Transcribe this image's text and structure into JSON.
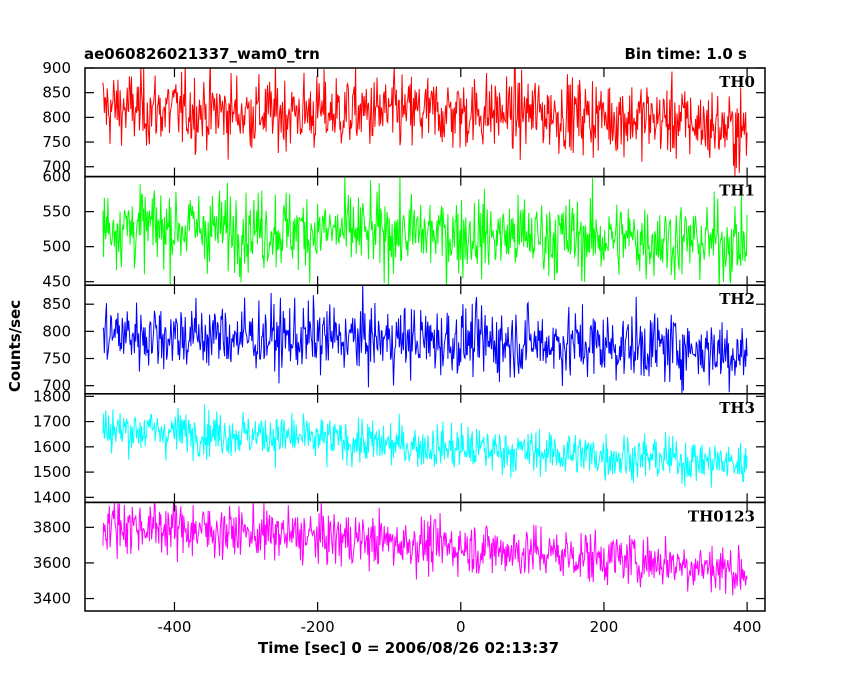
{
  "header": {
    "title": "ae060826021337_wam0_trn",
    "bin_time": "Bin time: 1.0 s"
  },
  "axes": {
    "xlabel": "Time [sec] 0 = 2006/08/26 02:13:37",
    "ylabel": "Counts/sec"
  },
  "chart_data": {
    "type": "line",
    "title": "ae060826021337_wam0_trn",
    "subtitle": "Bin time: 1.0 s",
    "xlabel": "Time [sec] 0 = 2006/08/26 02:13:37",
    "ylabel": "Counts/sec",
    "xlim": [
      -525,
      425
    ],
    "x_range": [
      -500,
      400
    ],
    "x_ticks": [
      -400,
      -200,
      0,
      200,
      400
    ],
    "bin_seconds": 1.0,
    "grid": false,
    "legend": "none",
    "panels": [
      {
        "name": "TH0",
        "color": "#ff0000",
        "ylim": [
          680,
          900
        ],
        "y_ticks": [
          700,
          750,
          800,
          850,
          900
        ],
        "trend_x": [
          -500,
          -300,
          -100,
          100,
          300,
          400
        ],
        "trend_y": [
          820,
          810,
          810,
          810,
          795,
          770
        ],
        "noise_sd": 38
      },
      {
        "name": "TH1",
        "color": "#00ff00",
        "ylim": [
          445,
          600
        ],
        "y_ticks": [
          450,
          500,
          550,
          600
        ],
        "trend_x": [
          -500,
          -300,
          -100,
          100,
          300,
          400
        ],
        "trend_y": [
          530,
          525,
          520,
          515,
          510,
          505
        ],
        "noise_sd": 28
      },
      {
        "name": "TH2",
        "color": "#0000ff",
        "ylim": [
          685,
          885
        ],
        "y_ticks": [
          700,
          750,
          800,
          850
        ],
        "trend_x": [
          -500,
          -300,
          -100,
          100,
          300,
          400
        ],
        "trend_y": [
          795,
          790,
          785,
          780,
          770,
          760
        ],
        "noise_sd": 32
      },
      {
        "name": "TH3",
        "color": "#00ffff",
        "ylim": [
          1380,
          1810
        ],
        "y_ticks": [
          1400,
          1500,
          1600,
          1700,
          1800
        ],
        "trend_x": [
          -500,
          -300,
          -100,
          100,
          300,
          400
        ],
        "trend_y": [
          1670,
          1650,
          1610,
          1580,
          1550,
          1530
        ],
        "noise_sd": 45
      },
      {
        "name": "TH0123",
        "color": "#ff00ff",
        "ylim": [
          3330,
          3940
        ],
        "y_ticks": [
          3400,
          3600,
          3800
        ],
        "trend_x": [
          -500,
          -300,
          -100,
          100,
          300,
          400
        ],
        "trend_y": [
          3820,
          3770,
          3720,
          3660,
          3600,
          3550
        ],
        "noise_sd": 75
      }
    ]
  }
}
